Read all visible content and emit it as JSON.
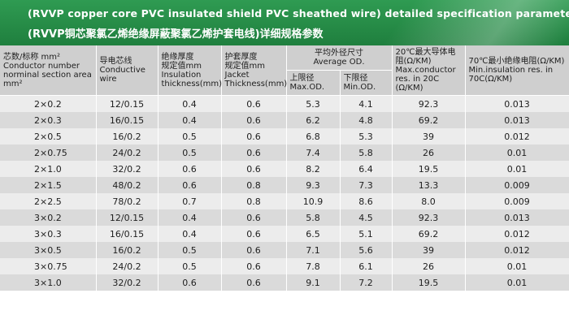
{
  "banner": {
    "title_en": "(RVVP copper core PVC insulated shield PVC sheathed wire) detailed specification parameters",
    "title_cn": "(RVVP铜芯聚氯乙烯绝缘屏蔽聚氯乙烯护套电线)详细规格参数",
    "color": "#23884a"
  },
  "headers": {
    "col1_cn": "芯数/标称 mm²",
    "col1_en1": "Conductor number",
    "col1_en2": "norminal section area mm²",
    "col2_cn": "导电芯线",
    "col2_en": "Conductive wire",
    "col3_cn1": "绝缘厚度",
    "col3_cn2": "规定值mm",
    "col3_en": "Insulation thickness(mm)",
    "col4_cn1": "护套厚度",
    "col4_cn2": "规定值mm",
    "col4_en": "Jacket Thickness(mm)",
    "col5_cn": "平均外径尺寸",
    "col5_en": "Average OD.",
    "col5a_cn": "上限径",
    "col5a_en": "Max.OD.",
    "col5b_cn": "下限径",
    "col5b_en": "Min.OD.",
    "col6_cn": "20℃最大导体电阻(Ω/KM)",
    "col6_en": "Max.conductor res. in 20C (Ω/KM)",
    "col7_cn": "70℃最小绝缘电阻(Ω/KM)",
    "col7_en": "Min.insulation res. in 70C(Ω/KM)"
  },
  "rows": [
    {
      "spec": "2×0.2",
      "wire": "12/0.15",
      "ins": "0.4",
      "jacket": "0.6",
      "max": "5.3",
      "min": "4.1",
      "res20": "92.3",
      "res70": "0.013"
    },
    {
      "spec": "2×0.3",
      "wire": "16/0.15",
      "ins": "0.4",
      "jacket": "0.6",
      "max": "6.2",
      "min": "4.8",
      "res20": "69.2",
      "res70": "0.013"
    },
    {
      "spec": "2×0.5",
      "wire": "16/0.2",
      "ins": "0.5",
      "jacket": "0.6",
      "max": "6.8",
      "min": "5.3",
      "res20": "39",
      "res70": "0.012"
    },
    {
      "spec": "2×0.75",
      "wire": "24/0.2",
      "ins": "0.5",
      "jacket": "0.6",
      "max": "7.4",
      "min": "5.8",
      "res20": "26",
      "res70": "0.01"
    },
    {
      "spec": "2×1.0",
      "wire": "32/0.2",
      "ins": "0.6",
      "jacket": "0.6",
      "max": "8.2",
      "min": "6.4",
      "res20": "19.5",
      "res70": "0.01"
    },
    {
      "spec": "2×1.5",
      "wire": "48/0.2",
      "ins": "0.6",
      "jacket": "0.8",
      "max": "9.3",
      "min": "7.3",
      "res20": "13.3",
      "res70": "0.009"
    },
    {
      "spec": "2×2.5",
      "wire": "78/0.2",
      "ins": "0.7",
      "jacket": "0.8",
      "max": "10.9",
      "min": "8.6",
      "res20": "8.0",
      "res70": "0.009"
    },
    {
      "spec": "3×0.2",
      "wire": "12/0.15",
      "ins": "0.4",
      "jacket": "0.6",
      "max": "5.8",
      "min": "4.5",
      "res20": "92.3",
      "res70": "0.013"
    },
    {
      "spec": "3×0.3",
      "wire": "16/0.15",
      "ins": "0.4",
      "jacket": "0.6",
      "max": "6.5",
      "min": "5.1",
      "res20": "69.2",
      "res70": "0.012"
    },
    {
      "spec": "3×0.5",
      "wire": "16/0.2",
      "ins": "0.5",
      "jacket": "0.6",
      "max": "7.1",
      "min": "5.6",
      "res20": "39",
      "res70": "0.012"
    },
    {
      "spec": "3×0.75",
      "wire": "24/0.2",
      "ins": "0.5",
      "jacket": "0.6",
      "max": "7.8",
      "min": "6.1",
      "res20": "26",
      "res70": "0.01"
    },
    {
      "spec": "3×1.0",
      "wire": "32/0.2",
      "ins": "0.6",
      "jacket": "0.6",
      "max": "9.1",
      "min": "7.2",
      "res20": "19.5",
      "res70": "0.01"
    }
  ]
}
